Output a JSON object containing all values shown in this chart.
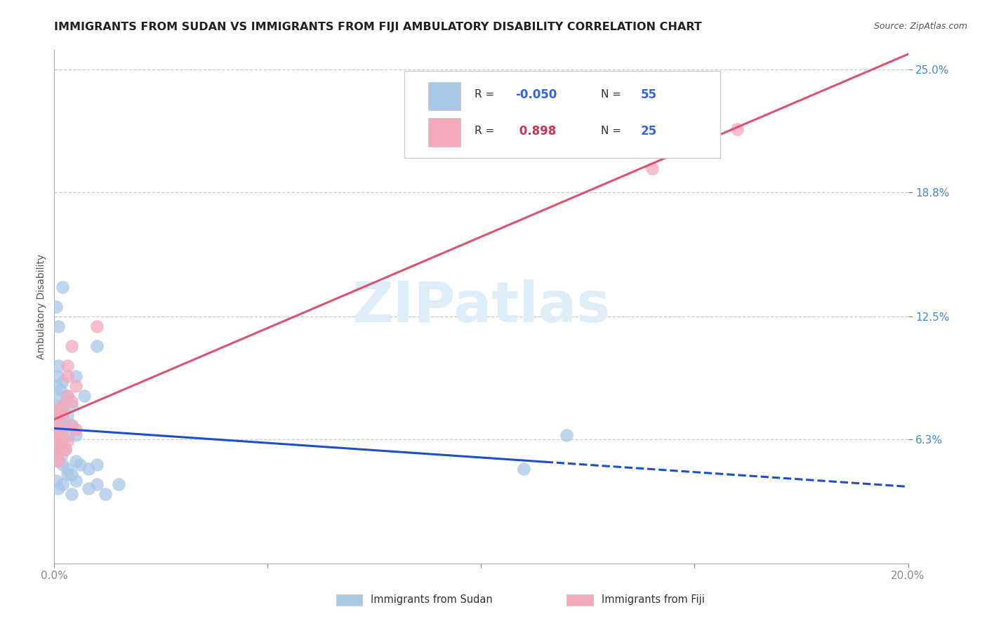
{
  "title": "IMMIGRANTS FROM SUDAN VS IMMIGRANTS FROM FIJI AMBULATORY DISABILITY CORRELATION CHART",
  "source": "Source: ZipAtlas.com",
  "ylabel": "Ambulatory Disability",
  "xlim": [
    0.0,
    0.2
  ],
  "ylim": [
    0.0,
    0.26
  ],
  "yticks": [
    0.063,
    0.125,
    0.188,
    0.25
  ],
  "ytick_labels": [
    "6.3%",
    "12.5%",
    "18.8%",
    "25.0%"
  ],
  "xticks": [
    0.0,
    0.05,
    0.1,
    0.15,
    0.2
  ],
  "xtick_labels": [
    "0.0%",
    "",
    "",
    "",
    "20.0%"
  ],
  "sudan_color": "#a8c8e8",
  "fiji_color": "#f4a8bc",
  "sudan_line_color": "#1a50cc",
  "fiji_line_color": "#e05070",
  "sudan_R": -0.05,
  "sudan_N": 55,
  "fiji_R": 0.898,
  "fiji_N": 25,
  "sudan_x": [
    0.0005,
    0.0008,
    0.001,
    0.0012,
    0.0015,
    0.0018,
    0.002,
    0.0022,
    0.0025,
    0.003,
    0.0005,
    0.0008,
    0.001,
    0.0012,
    0.0015,
    0.002,
    0.0025,
    0.003,
    0.004,
    0.005,
    0.0005,
    0.0008,
    0.001,
    0.0015,
    0.002,
    0.003,
    0.004,
    0.005,
    0.007,
    0.01,
    0.0005,
    0.001,
    0.0015,
    0.002,
    0.003,
    0.004,
    0.005,
    0.006,
    0.008,
    0.01,
    0.0005,
    0.001,
    0.002,
    0.003,
    0.004,
    0.005,
    0.008,
    0.01,
    0.012,
    0.015,
    0.0005,
    0.001,
    0.002,
    0.11,
    0.12
  ],
  "sudan_y": [
    0.063,
    0.058,
    0.065,
    0.06,
    0.068,
    0.055,
    0.063,
    0.07,
    0.058,
    0.065,
    0.075,
    0.08,
    0.085,
    0.072,
    0.078,
    0.068,
    0.082,
    0.075,
    0.07,
    0.065,
    0.09,
    0.095,
    0.1,
    0.088,
    0.092,
    0.085,
    0.08,
    0.095,
    0.085,
    0.11,
    0.055,
    0.052,
    0.058,
    0.05,
    0.048,
    0.045,
    0.052,
    0.05,
    0.048,
    0.05,
    0.042,
    0.038,
    0.04,
    0.045,
    0.035,
    0.042,
    0.038,
    0.04,
    0.035,
    0.04,
    0.13,
    0.12,
    0.14,
    0.048,
    0.065
  ],
  "fiji_x": [
    0.0005,
    0.001,
    0.0015,
    0.002,
    0.0025,
    0.003,
    0.004,
    0.005,
    0.0005,
    0.001,
    0.002,
    0.003,
    0.004,
    0.005,
    0.0005,
    0.001,
    0.002,
    0.003,
    0.0005,
    0.002,
    0.003,
    0.004,
    0.01,
    0.14,
    0.16
  ],
  "fiji_y": [
    0.063,
    0.06,
    0.065,
    0.068,
    0.058,
    0.062,
    0.07,
    0.068,
    0.075,
    0.078,
    0.08,
    0.085,
    0.082,
    0.09,
    0.055,
    0.052,
    0.058,
    0.095,
    0.07,
    0.075,
    0.1,
    0.11,
    0.12,
    0.2,
    0.22
  ],
  "background_color": "#ffffff",
  "grid_color": "#cccccc",
  "title_color": "#222222",
  "axis_label_color": "#555555",
  "tick_label_color": "#4488cc",
  "title_fontsize": 11.5,
  "axis_label_fontsize": 10,
  "tick_fontsize": 11,
  "legend_R_color_sudan": "#3366dd",
  "legend_R_color_fiji": "#cc3355",
  "legend_N_color": "#3366dd",
  "watermark_color": "#ddeef8",
  "watermark_text": "ZIPatlas"
}
